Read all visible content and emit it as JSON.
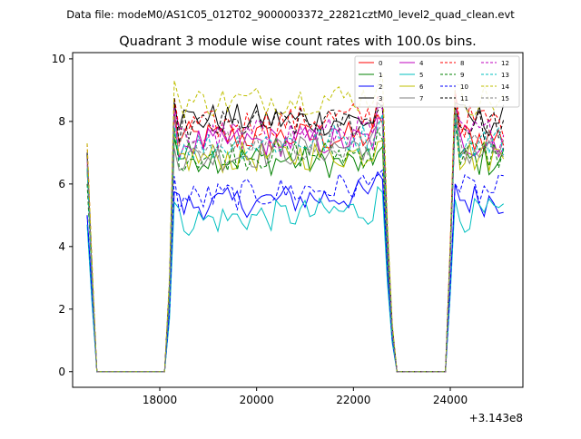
{
  "chart_data": {
    "type": "line",
    "suptitle": "Data file: modeM0/AS1C05_012T02_9000003372_22821cztM0_level2_quad_clean.evt",
    "title": "Quadrant 3 module wise count rates with 100.0s bins.",
    "xlabel": "",
    "ylabel": "",
    "x_offset_label": "+3.143e8",
    "xlim": [
      16200,
      25500
    ],
    "ylim": [
      -0.5,
      10.2
    ],
    "xticks": [
      18000,
      20000,
      22000,
      24000
    ],
    "xtick_labels": [
      "18000",
      "20000",
      "22000",
      "24000"
    ],
    "yticks": [
      0,
      2,
      4,
      6,
      8,
      10
    ],
    "ytick_labels": [
      "0",
      "2",
      "4",
      "6",
      "8",
      "10"
    ],
    "grid": false,
    "legend_position": "top-right",
    "segments": [
      {
        "start": 16500,
        "step": 100,
        "count": 3
      },
      {
        "start": 16700,
        "step": 100,
        "count": 15
      },
      {
        "start": 18200,
        "step": 100,
        "count": 47
      },
      {
        "start": 22800,
        "step": 100,
        "count": 7
      },
      {
        "start": 23900,
        "step": 100,
        "count": 13
      }
    ],
    "series": [
      {
        "name": "0",
        "color": "#ff0000",
        "dash": false,
        "start_vals": [
          7.0,
          3.0,
          1.0
        ],
        "level": 7.5,
        "level_b": 7.5,
        "end_vals": [
          9.0,
          5.0,
          2.0
        ]
      },
      {
        "name": "1",
        "color": "#008000",
        "dash": false,
        "start_vals": [
          6.5,
          3.0,
          1.0
        ],
        "level": 6.9,
        "level_b": 6.6,
        "end_vals": [
          8.5,
          4.5,
          1.5
        ]
      },
      {
        "name": "2",
        "color": "#0000ff",
        "dash": false,
        "start_vals": [
          5.0,
          2.5,
          0.8
        ],
        "level": 5.3,
        "level_b": 5.7,
        "end_vals": [
          6.0,
          3.5,
          1.2
        ]
      },
      {
        "name": "3",
        "color": "#000000",
        "dash": false,
        "start_vals": [
          7.0,
          3.2,
          1.0
        ],
        "level": 8.1,
        "level_b": 8.0,
        "end_vals": [
          8.6,
          4.5,
          1.6
        ]
      },
      {
        "name": "4",
        "color": "#bf00bf",
        "dash": false,
        "start_vals": [
          6.8,
          3.0,
          1.0
        ],
        "level": 7.3,
        "level_b": 7.4,
        "end_vals": [
          8.0,
          4.5,
          1.5
        ]
      },
      {
        "name": "5",
        "color": "#00bfbf",
        "dash": false,
        "start_vals": [
          4.7,
          2.2,
          0.7
        ],
        "level": 4.8,
        "level_b": 5.2,
        "end_vals": [
          5.5,
          3.0,
          1.0
        ]
      },
      {
        "name": "6",
        "color": "#bfbf00",
        "dash": false,
        "start_vals": [
          6.5,
          3.0,
          1.0
        ],
        "level": 6.8,
        "level_b": 7.0,
        "end_vals": [
          8.5,
          4.5,
          1.5
        ]
      },
      {
        "name": "7",
        "color": "#808080",
        "dash": false,
        "start_vals": [
          6.5,
          3.0,
          1.0
        ],
        "level": 6.8,
        "level_b": 7.3,
        "end_vals": [
          8.3,
          4.5,
          1.5
        ]
      },
      {
        "name": "8",
        "color": "#ff0000",
        "dash": true,
        "start_vals": [
          7.3,
          3.5,
          1.0
        ],
        "level": 7.8,
        "level_b": 8.2,
        "end_vals": [
          9.0,
          5.0,
          2.0
        ]
      },
      {
        "name": "9",
        "color": "#008000",
        "dash": true,
        "start_vals": [
          6.0,
          3.0,
          1.0
        ],
        "level": 6.9,
        "level_b": 7.0,
        "end_vals": [
          8.0,
          4.5,
          1.5
        ]
      },
      {
        "name": "10",
        "color": "#0000ff",
        "dash": true,
        "start_vals": [
          5.0,
          2.5,
          0.8
        ],
        "level": 5.5,
        "level_b": 6.0,
        "end_vals": [
          6.0,
          3.5,
          1.2
        ]
      },
      {
        "name": "11",
        "color": "#000000",
        "dash": true,
        "start_vals": [
          7.0,
          3.2,
          1.0
        ],
        "level": 7.8,
        "level_b": 8.0,
        "end_vals": [
          8.5,
          4.5,
          1.5
        ]
      },
      {
        "name": "12",
        "color": "#bf00bf",
        "dash": true,
        "start_vals": [
          6.8,
          3.0,
          1.0
        ],
        "level": 7.5,
        "level_b": 7.7,
        "end_vals": [
          8.5,
          4.5,
          1.5
        ]
      },
      {
        "name": "13",
        "color": "#00bfbf",
        "dash": true,
        "start_vals": [
          6.5,
          3.0,
          1.0
        ],
        "level": 7.2,
        "level_b": 7.5,
        "end_vals": [
          8.2,
          4.5,
          1.5
        ]
      },
      {
        "name": "14",
        "color": "#bfbf00",
        "dash": true,
        "start_vals": [
          7.3,
          3.5,
          1.0
        ],
        "level": 8.6,
        "level_b": 8.8,
        "end_vals": [
          9.2,
          5.0,
          2.0
        ]
      },
      {
        "name": "15",
        "color": "#808080",
        "dash": true,
        "start_vals": [
          6.8,
          3.0,
          1.0
        ],
        "level": 7.3,
        "level_b": 7.2,
        "end_vals": [
          8.5,
          4.5,
          1.5
        ]
      }
    ]
  }
}
